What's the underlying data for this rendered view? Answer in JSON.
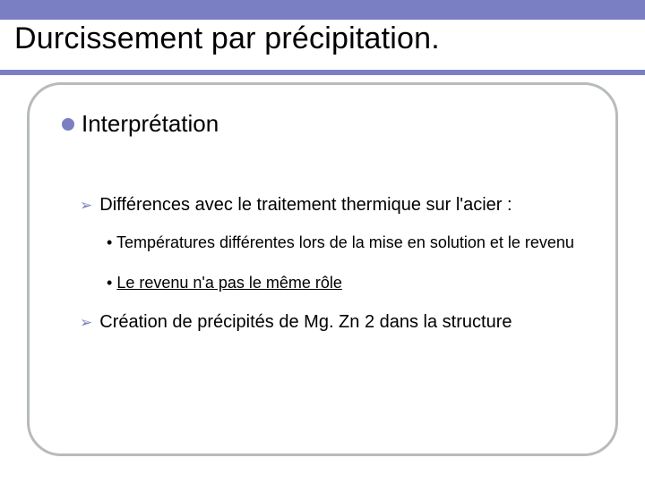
{
  "colors": {
    "band": "#7a7fc4",
    "border": "#b7bbbe",
    "text": "#000000",
    "bg": "#ffffff"
  },
  "title": "Durcissement par précipitation.",
  "level1": {
    "bullet_color": "#7a7fc4",
    "text": "Interprétation",
    "fontsize": 26
  },
  "level2_bullet": "➢",
  "items": [
    {
      "text": "Différences avec le traitement thermique sur l'acier :"
    },
    {
      "text": "Création de précipités de Mg. Zn 2 dans la structure"
    }
  ],
  "subitems": [
    {
      "prefix": "• ",
      "text": "Températures différentes lors de la mise en solution et le revenu",
      "underline": false
    },
    {
      "prefix": "• ",
      "text": "Le revenu n'a pas le même rôle",
      "underline": true
    }
  ]
}
